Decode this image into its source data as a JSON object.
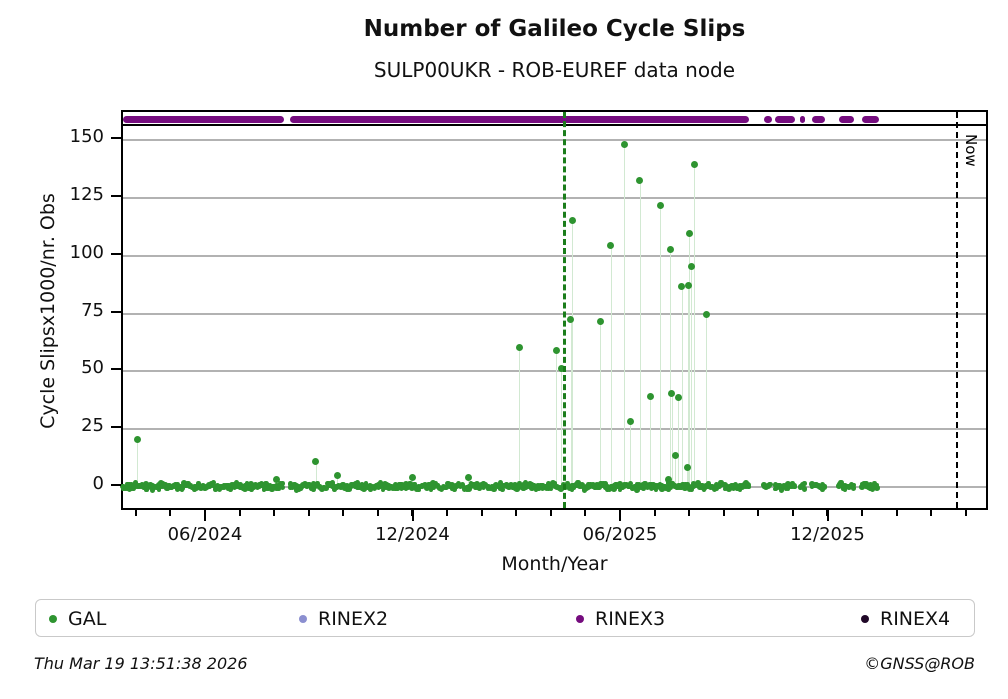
{
  "header": {
    "title": "Number of Galileo Cycle Slips",
    "subtitle": "SULP00UKR - ROB-EUREF data node"
  },
  "footer": {
    "timestamp": "Thu Mar 19 13:51:38 2026",
    "credit": "©GNSS@ROB"
  },
  "now_label": "Now",
  "colors": {
    "gal": "#2e9430",
    "gal_stem": "#d2e9d2",
    "rinex2": "#8b8fd0",
    "rinex3": "#750c7e",
    "rinex4": "#200828",
    "grid": "#b2b2b2",
    "event_line": "#1b7d1b",
    "now_line": "#000000"
  },
  "legend": {
    "items": [
      {
        "label": "GAL",
        "color_key": "gal"
      },
      {
        "label": "RINEX2",
        "color_key": "rinex2"
      },
      {
        "label": "RINEX3",
        "color_key": "rinex3"
      },
      {
        "label": "RINEX4",
        "color_key": "rinex4"
      }
    ]
  },
  "chart_data": {
    "type": "scatter",
    "title": "Number of Galileo Cycle Slips",
    "subtitle": "SULP00UKR - ROB-EUREF data node",
    "xlabel": "Month/Year",
    "ylabel": "Cycle Slipsx1000/nr. Obs",
    "grid": "horizontal-only",
    "legend_position": "bottom",
    "x_axis": {
      "range_years": [
        2024.2144,
        2026.3036
      ],
      "major_ticks": [
        {
          "year": 2024.4167,
          "label": "06/2024"
        },
        {
          "year": 2024.9167,
          "label": "12/2024"
        },
        {
          "year": 2025.4167,
          "label": "06/2025"
        },
        {
          "year": 2025.9167,
          "label": "12/2025"
        }
      ],
      "minor_tick_interval_months": 1,
      "minor_tick_start_year": 2024.25,
      "minor_tick_end_year": 2026.25
    },
    "y_axis": {
      "range": [
        -10.8,
        162.1
      ],
      "ticks": [
        0,
        25,
        50,
        75,
        100,
        125,
        150
      ]
    },
    "series": [
      {
        "name": "GAL",
        "color_key": "gal",
        "points": [
          [
            2024.249,
            20.5
          ],
          [
            2024.585,
            3.2
          ],
          [
            2024.679,
            11.2
          ],
          [
            2024.731,
            5.0
          ],
          [
            2024.911,
            4.3
          ],
          [
            2025.046,
            3.9
          ],
          [
            2025.169,
            60.2
          ],
          [
            2025.258,
            59.1
          ],
          [
            2025.27,
            51.2
          ],
          [
            2025.293,
            72.2
          ],
          [
            2025.297,
            115.3
          ],
          [
            2025.364,
            71.5
          ],
          [
            2025.39,
            104.6
          ],
          [
            2025.422,
            148.0
          ],
          [
            2025.436,
            28.2
          ],
          [
            2025.46,
            132.6
          ],
          [
            2025.485,
            39.2
          ],
          [
            2025.509,
            121.5
          ],
          [
            2025.528,
            3.3
          ],
          [
            2025.533,
            102.6
          ],
          [
            2025.536,
            40.3
          ],
          [
            2025.545,
            13.5
          ],
          [
            2025.552,
            38.6
          ],
          [
            2025.561,
            86.6
          ],
          [
            2025.574,
            8.3
          ],
          [
            2025.576,
            87.3
          ],
          [
            2025.579,
            109.7
          ],
          [
            2025.584,
            95.5
          ],
          [
            2025.591,
            139.3
          ],
          [
            2025.62,
            74.7
          ]
        ],
        "baseline_noise_range": [
          -1.5,
          2.5
        ],
        "baseline_segments": [
          [
            2024.2144,
            2024.6016
          ],
          [
            2024.6175,
            2025.7221
          ],
          [
            2025.7583,
            2025.7783
          ],
          [
            2025.7862,
            2025.8344
          ],
          [
            2025.8465,
            2025.8585
          ],
          [
            2025.8747,
            2025.9067
          ],
          [
            2025.939,
            2025.9752
          ],
          [
            2025.9952,
            2026.0354
          ]
        ]
      },
      {
        "name": "RINEX2",
        "color_key": "rinex2",
        "points": []
      },
      {
        "name": "RINEX3",
        "color_key": "rinex3",
        "level": 159,
        "segments": [
          [
            2024.2144,
            2024.6016
          ],
          [
            2024.6175,
            2025.7221
          ],
          [
            2025.7583,
            2025.7783
          ],
          [
            2025.7862,
            2025.8344
          ],
          [
            2025.8465,
            2025.8585
          ],
          [
            2025.8747,
            2025.9067
          ],
          [
            2025.939,
            2025.9752
          ],
          [
            2025.9952,
            2026.0354
          ]
        ]
      },
      {
        "name": "RINEX4",
        "color_key": "rinex4",
        "points": []
      }
    ],
    "annotations": {
      "event_line_x_year": 2025.277,
      "now_line_x_year": 2026.224,
      "now_label": "Now",
      "top_rule_y_value": 156.6
    }
  }
}
